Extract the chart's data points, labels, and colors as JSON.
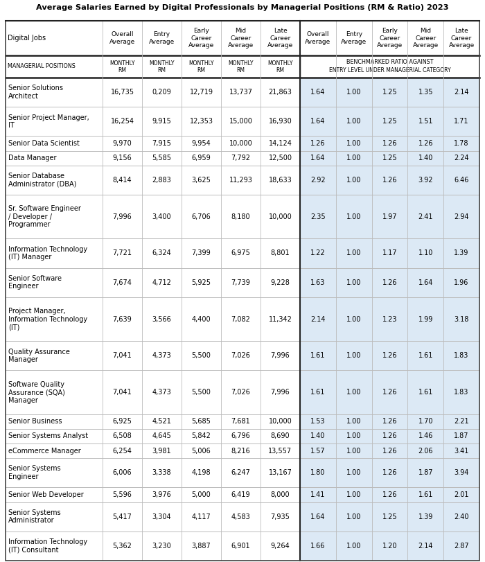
{
  "title": "Average Salaries Earned by Digital Professionals by Managerial Positions (RM & Ratio) 2023",
  "rows": [
    [
      "Senior Solutions\nArchitect",
      "16,735",
      "0,209",
      "12,719",
      "13,737",
      "21,863",
      "1.64",
      "1.00",
      "1.25",
      "1.35",
      "2.14"
    ],
    [
      "Senior Project Manager,\nIT",
      "16,254",
      "9,915",
      "12,353",
      "15,000",
      "16,930",
      "1.64",
      "1.00",
      "1.25",
      "1.51",
      "1.71"
    ],
    [
      "Senior Data Scientist",
      "9,970",
      "7,915",
      "9,954",
      "10,000",
      "14,124",
      "1.26",
      "1.00",
      "1.26",
      "1.26",
      "1.78"
    ],
    [
      "Data Manager",
      "9,156",
      "5,585",
      "6,959",
      "7,792",
      "12,500",
      "1.64",
      "1.00",
      "1.25",
      "1.40",
      "2.24"
    ],
    [
      "Senior Database\nAdministrator (DBA)",
      "8,414",
      "2,883",
      "3,625",
      "11,293",
      "18,633",
      "2.92",
      "1.00",
      "1.26",
      "3.92",
      "6.46"
    ],
    [
      "Sr. Software Engineer\n/ Developer /\nProgrammer",
      "7,996",
      "3,400",
      "6,706",
      "8,180",
      "10,000",
      "2.35",
      "1.00",
      "1.97",
      "2.41",
      "2.94"
    ],
    [
      "Information Technology\n(IT) Manager",
      "7,721",
      "6,324",
      "7,399",
      "6,975",
      "8,801",
      "1.22",
      "1.00",
      "1.17",
      "1.10",
      "1.39"
    ],
    [
      "Senior Software\nEngineer",
      "7,674",
      "4,712",
      "5,925",
      "7,739",
      "9,228",
      "1.63",
      "1.00",
      "1.26",
      "1.64",
      "1.96"
    ],
    [
      "Project Manager,\nInformation Technology\n(IT)",
      "7,639",
      "3,566",
      "4,400",
      "7,082",
      "11,342",
      "2.14",
      "1.00",
      "1.23",
      "1.99",
      "3.18"
    ],
    [
      "Quality Assurance\nManager",
      "7,041",
      "4,373",
      "5,500",
      "7,026",
      "7,996",
      "1.61",
      "1.00",
      "1.26",
      "1.61",
      "1.83"
    ],
    [
      "Software Quality\nAssurance (SQA)\nManager",
      "7,041",
      "4,373",
      "5,500",
      "7,026",
      "7,996",
      "1.61",
      "1.00",
      "1.26",
      "1.61",
      "1.83"
    ],
    [
      "Senior Business",
      "6,925",
      "4,521",
      "5,685",
      "7,681",
      "10,000",
      "1.53",
      "1.00",
      "1.26",
      "1.70",
      "2.21"
    ],
    [
      "Senior Systems Analyst",
      "6,508",
      "4,645",
      "5,842",
      "6,796",
      "8,690",
      "1.40",
      "1.00",
      "1.26",
      "1.46",
      "1.87"
    ],
    [
      "eCommerce Manager",
      "6,254",
      "3,981",
      "5,006",
      "8,216",
      "13,557",
      "1.57",
      "1.00",
      "1.26",
      "2.06",
      "3.41"
    ],
    [
      "Senior Systems\nEngineer",
      "6,006",
      "3,338",
      "4,198",
      "6,247",
      "13,167",
      "1.80",
      "1.00",
      "1.26",
      "1.87",
      "3.94"
    ],
    [
      "Senior Web Developer",
      "5,596",
      "3,976",
      "5,000",
      "6,419",
      "8,000",
      "1.41",
      "1.00",
      "1.26",
      "1.61",
      "2.01"
    ],
    [
      "Senior Systems\nAdministrator",
      "5,417",
      "3,304",
      "4,117",
      "4,583",
      "7,935",
      "1.64",
      "1.00",
      "1.25",
      "1.39",
      "2.40"
    ],
    [
      "Information Technology\n(IT) Consultant",
      "5,362",
      "3,230",
      "3,887",
      "6,901",
      "9,264",
      "1.66",
      "1.00",
      "1.20",
      "2.14",
      "2.87"
    ]
  ],
  "bg_white": "#ffffff",
  "bg_light_blue": "#dce9f5",
  "text_color": "#000000",
  "title_color": "#000000"
}
